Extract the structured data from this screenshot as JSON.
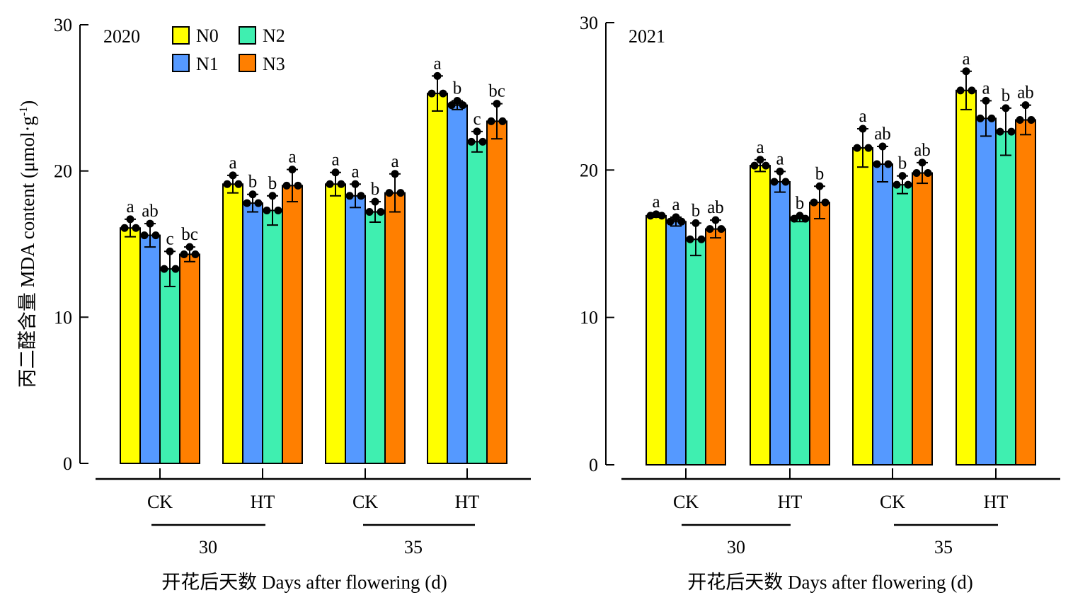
{
  "shared": {
    "ylabel_main": "丙二醛含量 MDA content (μmol·g",
    "ylabel_sup": "-1",
    "ylabel_close": ")",
    "xlabel": "开花后天数 Days after flowering (d)",
    "legend": [
      {
        "name": "N0",
        "color": "#FFFF00"
      },
      {
        "name": "N1",
        "color": "#5599FF"
      },
      {
        "name": "N2",
        "color": "#3FEFB0"
      },
      {
        "name": "N3",
        "color": "#FF7F00"
      }
    ]
  },
  "chart_data": [
    {
      "type": "bar",
      "year_label": "2020",
      "ylim": [
        0,
        30
      ],
      "yticks": [
        0,
        10,
        20,
        30
      ],
      "groups": [
        {
          "treatment": "CK",
          "day": "30",
          "values": [
            16.1,
            15.6,
            13.3,
            14.3
          ],
          "errors": [
            0.6,
            0.8,
            1.2,
            0.5
          ],
          "letters": [
            "a",
            "ab",
            "c",
            "bc"
          ]
        },
        {
          "treatment": "HT",
          "day": "30",
          "values": [
            19.1,
            17.8,
            17.3,
            19.0
          ],
          "errors": [
            0.6,
            0.6,
            1.0,
            1.1
          ],
          "letters": [
            "a",
            "b",
            "b",
            "a"
          ]
        },
        {
          "treatment": "CK",
          "day": "35",
          "values": [
            19.1,
            18.3,
            17.2,
            18.5
          ],
          "errors": [
            0.8,
            0.8,
            0.7,
            1.3
          ],
          "letters": [
            "a",
            "a",
            "b",
            "a"
          ]
        },
        {
          "treatment": "HT",
          "day": "35",
          "values": [
            25.3,
            24.5,
            22.0,
            23.4
          ],
          "errors": [
            1.2,
            0.3,
            0.7,
            1.2
          ],
          "letters": [
            "a",
            "b",
            "c",
            "bc"
          ]
        }
      ],
      "day_labels": [
        "30",
        "35"
      ]
    },
    {
      "type": "bar",
      "year_label": "2021",
      "ylim": [
        0,
        30
      ],
      "yticks": [
        0,
        10,
        20,
        30
      ],
      "groups": [
        {
          "treatment": "CK",
          "day": "30",
          "values": [
            16.9,
            16.5,
            15.3,
            16.0
          ],
          "errors": [
            0.1,
            0.3,
            1.1,
            0.6
          ],
          "letters": [
            "a",
            "a",
            "b",
            "ab"
          ]
        },
        {
          "treatment": "HT",
          "day": "30",
          "values": [
            20.3,
            19.2,
            16.7,
            17.8
          ],
          "errors": [
            0.4,
            0.7,
            0.2,
            1.1
          ],
          "letters": [
            "a",
            "a",
            "b",
            "b"
          ]
        },
        {
          "treatment": "CK",
          "day": "35",
          "values": [
            21.5,
            20.4,
            19.0,
            19.8
          ],
          "errors": [
            1.3,
            1.2,
            0.6,
            0.7
          ],
          "letters": [
            "a",
            "ab",
            "b",
            "ab"
          ]
        },
        {
          "treatment": "HT",
          "day": "35",
          "values": [
            25.4,
            23.5,
            22.6,
            23.4
          ],
          "errors": [
            1.3,
            1.2,
            1.6,
            1.0
          ],
          "letters": [
            "a",
            "a",
            "b",
            "ab"
          ]
        }
      ],
      "day_labels": [
        "30",
        "35"
      ]
    }
  ]
}
